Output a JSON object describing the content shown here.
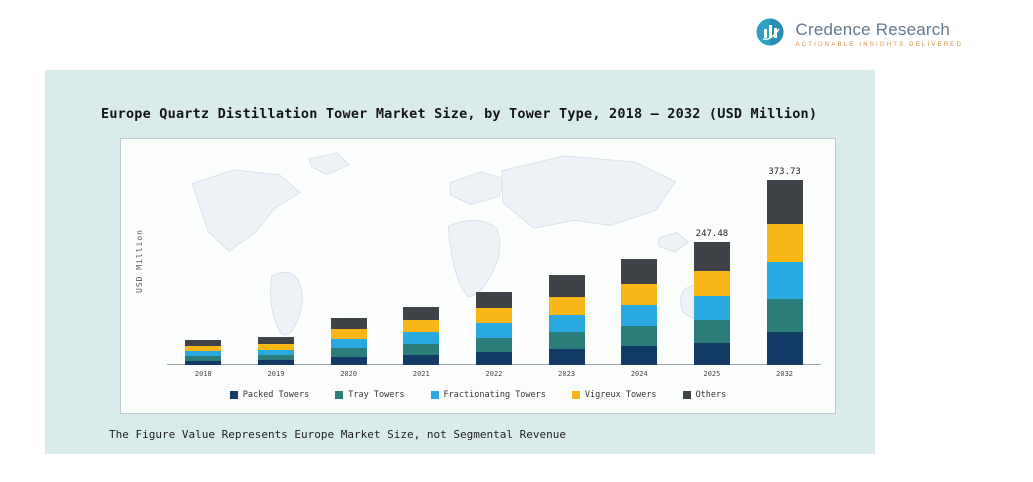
{
  "logo": {
    "name": "Credence Research",
    "tagline": "Actionable Insights Delivered",
    "icon": "bar-chart-circle-icon",
    "brand_color": "#2da0c3",
    "text_color": "#64798c",
    "tagline_color": "#d3913f"
  },
  "title": "Europe Quartz Distillation Tower Market Size, by Tower Type, 2018 – 2032 (USD Million)",
  "footnote": "The Figure Value Represents Europe Market Size, not Segmental Revenue",
  "panel_color": "#d9eceb",
  "chart_data": {
    "type": "bar",
    "stacked": true,
    "title": "Europe Quartz Distillation Tower Market Size, by Tower Type, 2018 – 2032 (USD Million)",
    "ylabel": "USD Million",
    "xlabel": "",
    "grid": false,
    "legend_position": "bottom",
    "categories": [
      "2018",
      "2019",
      "2020",
      "2021",
      "2022",
      "2023",
      "2024",
      "2025",
      "2032"
    ],
    "series": [
      {
        "name": "Packed Towers",
        "color": "#133a64",
        "values": [
          9,
          10,
          17,
          21,
          27,
          33,
          39,
          45,
          67
        ]
      },
      {
        "name": "Tray Towers",
        "color": "#2a7d79",
        "values": [
          9,
          10,
          17,
          21,
          27,
          33,
          39,
          45,
          67
        ]
      },
      {
        "name": "Fractionating Towers",
        "color": "#2aa9e0",
        "values": [
          10,
          11,
          19,
          24,
          30,
          36,
          43,
          49,
          75
        ]
      },
      {
        "name": "Vigreux Towers",
        "color": "#f8b617",
        "values": [
          10,
          11,
          19,
          24,
          30,
          36,
          43,
          50,
          75
        ]
      },
      {
        "name": "Others",
        "color": "#3f4347",
        "values": [
          12,
          14,
          23,
          28,
          34,
          44,
          50,
          58.48,
          89.73
        ]
      }
    ],
    "totals_estimated": [
      50,
      56,
      95,
      118,
      148,
      182,
      214,
      247.48,
      373.73
    ],
    "data_labels": [
      {
        "category": "2025",
        "label": "247.48"
      },
      {
        "category": "2032",
        "label": "373.73"
      }
    ]
  }
}
